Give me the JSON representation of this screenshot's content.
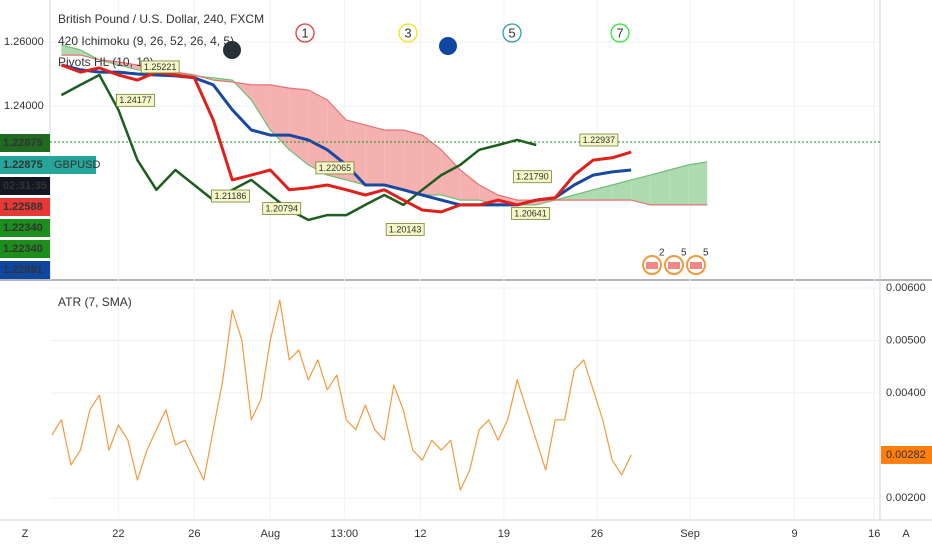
{
  "chart_data": [
    {
      "type": "line",
      "title": "British Pound / U.S. Dollar, 240, FXCM",
      "indicators": [
        "420 Ichimoku (9, 26, 52, 26, 4, 5)",
        "Pivots HL (10, 10)"
      ],
      "markers": [
        {
          "label": "1",
          "color": "#e53935"
        },
        {
          "label": "3",
          "color": "#f2e21f"
        },
        {
          "label": "5",
          "color": "#26a69a"
        },
        {
          "label": "7",
          "color": "#2ee82e"
        }
      ],
      "events": [
        "2",
        "5",
        "5"
      ],
      "badges": [
        {
          "label": "1.22875",
          "color": "#1e6b21"
        },
        {
          "label": "1.22875",
          "color": "#26a69a",
          "symbol": "GBPUSD"
        },
        {
          "label": "02:31:35",
          "color": "#131722"
        },
        {
          "label": "1.22588",
          "color": "#e53935"
        },
        {
          "label": "1.22340",
          "color": "#1b8e1b"
        },
        {
          "label": "1.22340",
          "color": "#1b8e1b"
        },
        {
          "label": "1.22091",
          "color": "#0d47a1"
        }
      ],
      "last_price": 1.22875,
      "xlim": [
        -3.6,
        40.1
      ],
      "ylim": [
        1.18625,
        1.273125
      ],
      "yticks": [
        {
          "value": 1.26,
          "label": "1.26000"
        },
        {
          "value": 1.24,
          "label": "1.24000"
        }
      ],
      "x": [
        -3,
        -2,
        -1,
        0,
        1,
        2,
        3,
        4,
        5,
        6,
        7,
        8,
        9,
        10,
        11,
        12,
        13,
        14,
        15,
        16,
        17,
        18,
        19,
        20,
        21,
        22,
        23,
        24,
        25,
        26,
        27,
        28,
        29,
        30,
        31
      ],
      "cloud_colors": {
        "bullish": "#a5d6a7",
        "bearish": "#f4a7a7"
      },
      "series": [
        {
          "color": "#6fbf73",
          "values": [
            1.2591,
            1.2575,
            1.2544,
            1.2528,
            1.2513,
            1.2506,
            1.25,
            1.2494,
            1.2488,
            1.2481,
            1.2419,
            1.2325,
            1.2263,
            1.2216,
            1.2184,
            1.2169,
            1.2153,
            1.2153,
            1.2138,
            1.2122,
            1.2122,
            1.2106,
            1.2106,
            1.2091,
            1.2091,
            1.2091,
            1.2106,
            1.2122,
            1.2138,
            1.2153,
            1.2169,
            1.2184,
            1.22,
            1.2216,
            1.2225
          ]
        },
        {
          "color": "#e57373",
          "values": [
            1.2559,
            1.2559,
            1.2544,
            1.2538,
            1.2528,
            1.2513,
            1.2506,
            1.2497,
            1.2481,
            1.2475,
            1.2466,
            1.2466,
            1.2456,
            1.245,
            1.2419,
            1.2356,
            1.2341,
            1.2325,
            1.2325,
            1.2309,
            1.2263,
            1.22,
            1.2153,
            1.2122,
            1.2106,
            1.2106,
            1.2106,
            1.2106,
            1.2106,
            1.2106,
            1.2106,
            1.2091,
            1.2091,
            1.2091,
            1.2091
          ]
        },
        {
          "color": "#1d5e20",
          "width": 2.5,
          "values": [
            1.2434,
            1.2466,
            1.2497,
            1.2388,
            1.2231,
            1.2138,
            1.22,
            1.2153,
            1.2106,
            1.2138,
            1.2169,
            1.2122,
            1.2075,
            1.2044,
            1.2059,
            1.2059,
            1.2091,
            1.2122,
            1.2091,
            1.2138,
            1.2184,
            1.2216,
            1.2263,
            1.2278,
            1.2294,
            1.2278,
            null,
            null,
            null,
            null,
            null,
            null,
            null,
            null,
            null
          ]
        },
        {
          "color": "#1848a0",
          "width": 3,
          "values": [
            1.2528,
            1.2513,
            1.2506,
            1.2506,
            1.25,
            1.2497,
            1.2494,
            1.2488,
            1.2466,
            1.2388,
            1.2325,
            1.2309,
            1.2309,
            1.2294,
            1.2263,
            1.2216,
            1.2153,
            1.2153,
            1.2138,
            1.2122,
            1.2106,
            1.2091,
            1.2091,
            1.2091,
            1.2091,
            1.2106,
            1.2113,
            1.2153,
            1.2184,
            1.2194,
            1.22,
            null,
            null,
            null,
            null
          ]
        },
        {
          "color": "#e0201b",
          "width": 3,
          "values": [
            1.2528,
            1.2506,
            1.2519,
            1.2497,
            1.2481,
            1.2506,
            1.2497,
            1.2488,
            1.2356,
            1.2169,
            1.2184,
            1.22,
            1.2138,
            1.2144,
            1.2153,
            1.2138,
            1.2122,
            1.2138,
            1.2106,
            1.2075,
            1.2069,
            1.2091,
            1.2091,
            1.2106,
            1.2091,
            1.2106,
            1.2113,
            1.2184,
            1.2231,
            1.2238,
            1.2256,
            null,
            null,
            null,
            null
          ]
        }
      ],
      "pivots": [
        {
          "x": 2.2,
          "value": 1.25221,
          "label": "1.25221"
        },
        {
          "x": 0.9,
          "value": 1.24177,
          "label": "1.24177"
        },
        {
          "x": 11.4,
          "value": 1.22065,
          "label": "1.22065"
        },
        {
          "x": 5.9,
          "value": 1.21186,
          "label": "1.21186"
        },
        {
          "x": 8.6,
          "value": 1.20794,
          "label": "1.20794"
        },
        {
          "x": 15.1,
          "value": 1.20143,
          "label": "1.20143"
        },
        {
          "x": 21.7,
          "value": 1.20641,
          "label": "1.20641"
        },
        {
          "x": 21.8,
          "value": 1.2179,
          "label": "1.21790"
        },
        {
          "x": 25.3,
          "value": 1.22937,
          "label": "1.22937"
        }
      ]
    },
    {
      "type": "line",
      "title": "ATR (7, SMA)",
      "xlim": [
        -3.6,
        40.1
      ],
      "xticks": [
        {
          "value": 0,
          "label": "22"
        },
        {
          "value": 4,
          "label": "26"
        },
        {
          "value": 8,
          "label": "Aug"
        },
        {
          "value": 11.9,
          "label": "13:00"
        },
        {
          "value": 15.9,
          "label": "12"
        },
        {
          "value": 20.3,
          "label": "19"
        },
        {
          "value": 25.2,
          "label": "26"
        },
        {
          "value": 30.1,
          "label": "Sep"
        },
        {
          "value": 35.6,
          "label": "9"
        },
        {
          "value": 39.8,
          "label": "16"
        }
      ],
      "ylim": [
        0.001581,
        0.006114
      ],
      "yticks": [
        {
          "value": 0.006,
          "label": "0.00600"
        },
        {
          "value": 0.005,
          "label": "0.00500"
        },
        {
          "value": 0.004,
          "label": "0.00400"
        },
        {
          "value": 0.002,
          "label": "0.00200"
        }
      ],
      "x": [
        -3.5,
        -3,
        -2.5,
        -2,
        -1.5,
        -1,
        -0.5,
        0,
        0.5,
        1,
        1.5,
        2,
        2.5,
        3,
        3.5,
        4,
        4.5,
        5,
        5.5,
        6,
        6.5,
        7,
        7.5,
        8,
        8.5,
        9,
        9.5,
        10,
        10.5,
        11,
        11.5,
        12,
        12.5,
        13,
        13.5,
        14,
        14.5,
        15,
        15.5,
        16,
        16.5,
        17,
        17.5,
        18,
        18.5,
        19,
        19.5,
        20,
        20.5,
        21,
        21.5,
        22,
        22.5,
        23,
        23.5,
        24,
        24.5,
        25,
        25.5,
        26,
        26.5,
        27
      ],
      "series": [
        {
          "color": "#f29a3c",
          "values": [
            0.0032,
            0.00349,
            0.00263,
            0.00291,
            0.00368,
            0.00396,
            0.00291,
            0.00339,
            0.0031,
            0.00234,
            0.00291,
            0.0033,
            0.00368,
            0.00301,
            0.0031,
            0.00272,
            0.00234,
            0.0033,
            0.00425,
            0.00558,
            0.00501,
            0.00349,
            0.00387,
            0.00501,
            0.00577,
            0.00463,
            0.00482,
            0.00425,
            0.00463,
            0.00406,
            0.00434,
            0.00349,
            0.0033,
            0.00377,
            0.0033,
            0.0031,
            0.00415,
            0.00368,
            0.00291,
            0.00272,
            0.0031,
            0.00291,
            0.0031,
            0.00215,
            0.00253,
            0.0033,
            0.00349,
            0.0031,
            0.00349,
            0.00425,
            0.00368,
            0.0031,
            0.00253,
            0.00349,
            0.00349,
            0.00444,
            0.00463,
            0.00406,
            0.00349,
            0.00272,
            0.00244,
            0.00282
          ]
        }
      ],
      "badge_color": "#ff7f0e",
      "corner_left": "Z",
      "corner_right": "A"
    }
  ]
}
